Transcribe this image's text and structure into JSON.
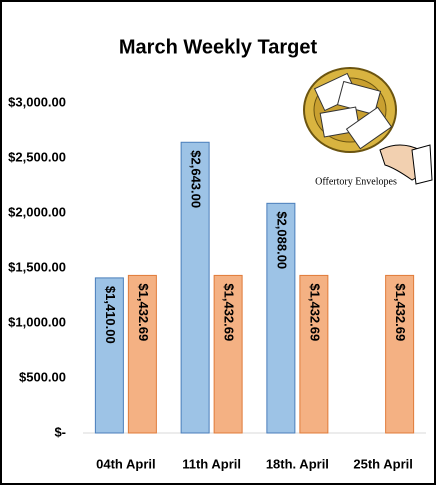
{
  "chart_data": {
    "type": "bar",
    "title": "March Weekly Target",
    "categories": [
      "04th April",
      "11th April",
      "18th. April",
      "25th April"
    ],
    "series": [
      {
        "color": "#9dc3e6",
        "values": [
          1410,
          2643,
          2088,
          null
        ],
        "value_labels": [
          "$1,410.00",
          "$2,643.00",
          "$2,088.00",
          null
        ]
      },
      {
        "color": "#f4b183",
        "values": [
          1432.69,
          1432.69,
          1432.69,
          1432.69
        ],
        "value_labels": [
          "$1,432.69",
          "$1,432.69",
          "$1,432.69",
          "$1,432.69"
        ]
      }
    ],
    "ylim": [
      0,
      3000
    ],
    "yticks": [
      {
        "value": 0,
        "label": "$-"
      },
      {
        "value": 500,
        "label": "$500.00"
      },
      {
        "value": 1000,
        "label": "$1,000.00"
      },
      {
        "value": 1500,
        "label": "$1,500.00"
      },
      {
        "value": 2000,
        "label": "$2,000.00"
      },
      {
        "value": 2500,
        "label": "$2,500.00"
      },
      {
        "value": 3000,
        "label": "$3,000.00"
      }
    ],
    "grid": false,
    "annotation": "Offertory Envelopes"
  }
}
